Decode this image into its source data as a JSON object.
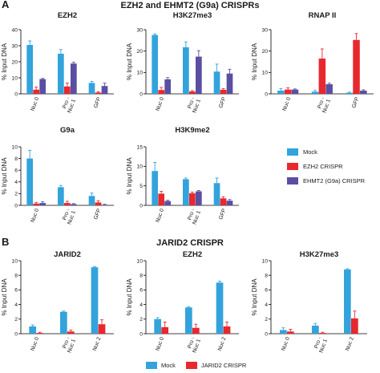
{
  "panel_a": {
    "letter": "A",
    "title": "EZH2 and EHMT2 (G9a) CRISPRs",
    "legend": [
      {
        "label": "Mock",
        "color": "#33a3dc"
      },
      {
        "label": "EZH2 CRISPR",
        "color": "#e8282d"
      },
      {
        "label": "EHMT2 (G9a) CRISPR",
        "color": "#5a4fa2"
      }
    ]
  },
  "panel_b": {
    "letter": "B",
    "title": "JARID2 CRISPR",
    "legend": [
      {
        "label": "Mock",
        "color": "#33a3dc"
      },
      {
        "label": "JARID2 CRISPR",
        "color": "#e8282d"
      }
    ]
  },
  "chart_data": [
    {
      "type": "bar",
      "panel": "A",
      "title": "EZH2",
      "ylabel": "% Input DNA",
      "ylim": [
        0,
        40
      ],
      "yticks": [
        0,
        10,
        20,
        30,
        40
      ],
      "ytick_labels": [
        "0",
        "10",
        "20",
        "30",
        "40"
      ],
      "categories": [
        "Nuc 0",
        "Pro -\nNuc 1",
        "GFP"
      ],
      "series": [
        {
          "color": "#33a3dc",
          "values": [
            30.5,
            25.0,
            6.8
          ],
          "errors": [
            2.5,
            2.6,
            1.0
          ]
        },
        {
          "color": "#e8282d",
          "values": [
            2.6,
            4.6,
            0.8
          ],
          "errors": [
            1.6,
            2.2,
            0.5
          ]
        },
        {
          "color": "#5a4fa2",
          "values": [
            9.2,
            18.9,
            4.9
          ],
          "errors": [
            0.4,
            0.8,
            1.8
          ]
        }
      ]
    },
    {
      "type": "bar",
      "panel": "A",
      "title": "H3K27me3",
      "ylabel": "% Input DNA",
      "ylim": [
        0,
        30
      ],
      "yticks": [
        0,
        10,
        20,
        30
      ],
      "ytick_labels": [
        "0",
        "10",
        "20",
        "30"
      ],
      "categories": [
        "Nuc 0",
        "Pro -\nNuc 1",
        "GFP"
      ],
      "series": [
        {
          "color": "#33a3dc",
          "values": [
            27.5,
            21.8,
            10.4
          ],
          "errors": [
            0.5,
            2.5,
            3.5
          ]
        },
        {
          "color": "#e8282d",
          "values": [
            1.8,
            1.1,
            1.9
          ],
          "errors": [
            1.2,
            0.4,
            0.5
          ]
        },
        {
          "color": "#5a4fa2",
          "values": [
            6.8,
            17.4,
            9.5
          ],
          "errors": [
            0.8,
            2.8,
            2.0
          ]
        }
      ]
    },
    {
      "type": "bar",
      "panel": "A",
      "title": "RNAP II",
      "ylabel": "% Input DNA",
      "ylim": [
        0,
        30
      ],
      "yticks": [
        0,
        10,
        20,
        30
      ],
      "ytick_labels": [
        "0",
        "10",
        "20",
        "30"
      ],
      "categories": [
        "Nuc 0",
        "Pro -\nNuc 1",
        "GFP"
      ],
      "series": [
        {
          "color": "#33a3dc",
          "values": [
            1.5,
            1.0,
            0.5
          ],
          "errors": [
            1.0,
            0.6,
            0.3
          ]
        },
        {
          "color": "#e8282d",
          "values": [
            2.0,
            16.5,
            25.2
          ],
          "errors": [
            0.8,
            4.5,
            3.0
          ]
        },
        {
          "color": "#5a4fa2",
          "values": [
            2.0,
            4.5,
            1.5
          ],
          "errors": [
            0.3,
            0.5,
            0.4
          ]
        }
      ]
    },
    {
      "type": "bar",
      "panel": "A",
      "title": "G9a",
      "ylabel": "% Input DNA",
      "ylim": [
        0,
        10
      ],
      "yticks": [
        0,
        2,
        4,
        6,
        8,
        10
      ],
      "ytick_labels": [
        "0",
        "2",
        "4",
        "6",
        "8",
        "10"
      ],
      "categories": [
        "Nuc 0",
        "Pro -\nNuc 1",
        "GFP"
      ],
      "series": [
        {
          "color": "#33a3dc",
          "values": [
            8.0,
            3.1,
            1.6
          ],
          "errors": [
            1.4,
            0.3,
            0.5
          ]
        },
        {
          "color": "#e8282d",
          "values": [
            0.3,
            0.4,
            0.5
          ],
          "errors": [
            0.2,
            0.3,
            0.3
          ]
        },
        {
          "color": "#5a4fa2",
          "values": [
            0.4,
            0.2,
            0.1
          ],
          "errors": [
            0.2,
            0.1,
            0.1
          ]
        }
      ]
    },
    {
      "type": "bar",
      "panel": "A",
      "title": "H3K9me2",
      "ylabel": "% Input DNA",
      "ylim": [
        0,
        15
      ],
      "yticks": [
        0,
        5,
        10,
        15
      ],
      "ytick_labels": [
        "0",
        "5",
        "10",
        "15"
      ],
      "categories": [
        "Nuc 0",
        "Pro -\nNuc 1",
        "GFP"
      ],
      "series": [
        {
          "color": "#33a3dc",
          "values": [
            8.8,
            6.7,
            5.7
          ],
          "errors": [
            2.2,
            0.3,
            1.3
          ]
        },
        {
          "color": "#e8282d",
          "values": [
            3.0,
            3.1,
            1.8
          ],
          "errors": [
            0.6,
            0.3,
            0.4
          ]
        },
        {
          "color": "#5a4fa2",
          "values": [
            1.1,
            3.6,
            1.2
          ],
          "errors": [
            0.2,
            0.2,
            0.3
          ]
        }
      ]
    },
    {
      "type": "bar",
      "panel": "B",
      "title": "JARID2",
      "ylabel": "% Input DNA",
      "ylim": [
        0,
        10
      ],
      "yticks": [
        0,
        2,
        4,
        6,
        8,
        10
      ],
      "ytick_labels": [
        "0",
        "2",
        "4",
        "6",
        "8",
        "10"
      ],
      "categories": [
        "Nuc 0",
        "Pro -\nNuc 1",
        "Nuc 2"
      ],
      "series": [
        {
          "color": "#33a3dc",
          "values": [
            1.0,
            3.0,
            9.1
          ],
          "errors": [
            0.2,
            0.1,
            0.1
          ]
        },
        {
          "color": "#e8282d",
          "values": [
            0.1,
            0.3,
            1.3
          ],
          "errors": [
            0.1,
            0.2,
            0.6
          ]
        }
      ]
    },
    {
      "type": "bar",
      "panel": "B",
      "title": "EZH2",
      "ylabel": "% Input DNA",
      "ylim": [
        0,
        10
      ],
      "yticks": [
        0,
        2,
        4,
        6,
        8,
        10
      ],
      "ytick_labels": [
        "0",
        "2",
        "4",
        "6",
        "8",
        "10"
      ],
      "categories": [
        "Nuc 0",
        "Pro -\nNuc 1",
        "Nuc 2"
      ],
      "series": [
        {
          "color": "#33a3dc",
          "values": [
            2.0,
            3.6,
            7.0
          ],
          "errors": [
            0.2,
            0.1,
            0.2
          ]
        },
        {
          "color": "#e8282d",
          "values": [
            0.9,
            0.8,
            1.0
          ],
          "errors": [
            0.7,
            0.5,
            0.6
          ]
        }
      ]
    },
    {
      "type": "bar",
      "panel": "B",
      "title": "H3K27me3",
      "ylabel": "% Input DNA",
      "ylim": [
        0,
        10
      ],
      "yticks": [
        0,
        2,
        4,
        6,
        8,
        10
      ],
      "ytick_labels": [
        "0",
        "2",
        "4",
        "6",
        "8",
        "10"
      ],
      "categories": [
        "Nuc 0",
        "Pro -\nNuc 1",
        "Nuc 2"
      ],
      "series": [
        {
          "color": "#33a3dc",
          "values": [
            0.5,
            1.1,
            8.8
          ],
          "errors": [
            0.3,
            0.3,
            0.1
          ]
        },
        {
          "color": "#e8282d",
          "values": [
            0.3,
            0.1,
            2.1
          ],
          "errors": [
            0.3,
            0.1,
            1.0
          ]
        }
      ]
    }
  ]
}
